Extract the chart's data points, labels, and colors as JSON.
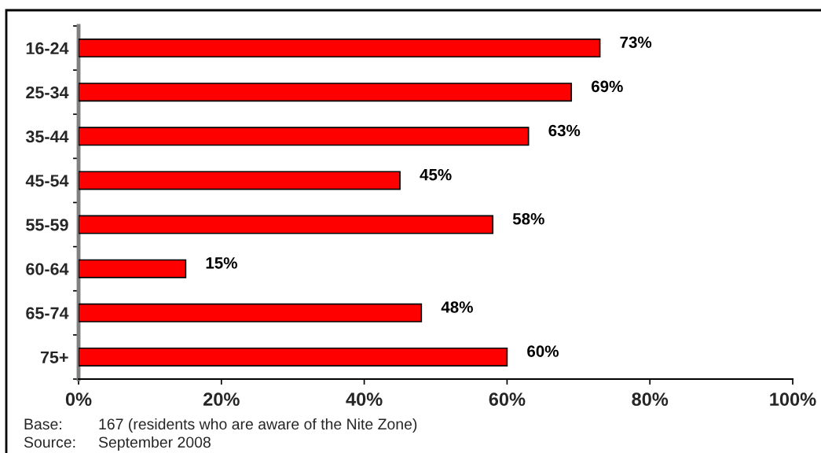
{
  "chart_data": {
    "type": "bar",
    "orientation": "horizontal",
    "categories": [
      "16-24",
      "25-34",
      "35-44",
      "45-54",
      "55-59",
      "60-64",
      "65-74",
      "75+"
    ],
    "values": [
      73,
      69,
      63,
      45,
      58,
      15,
      48,
      60
    ],
    "value_labels": [
      "73%",
      "69%",
      "63%",
      "45%",
      "58%",
      "15%",
      "48%",
      "60%"
    ],
    "color": "#ff0000",
    "xlim": [
      0,
      100
    ],
    "xticks": [
      {
        "value": 0,
        "label": "0%"
      },
      {
        "value": 20,
        "label": "20%"
      },
      {
        "value": 40,
        "label": "40%"
      },
      {
        "value": 60,
        "label": "60%"
      },
      {
        "value": 80,
        "label": "80%"
      },
      {
        "value": 100,
        "label": "100%"
      }
    ],
    "annotations": [
      "Base: 167 (residents who are aware of the Nite Zone)",
      "Source: September 2008"
    ]
  }
}
